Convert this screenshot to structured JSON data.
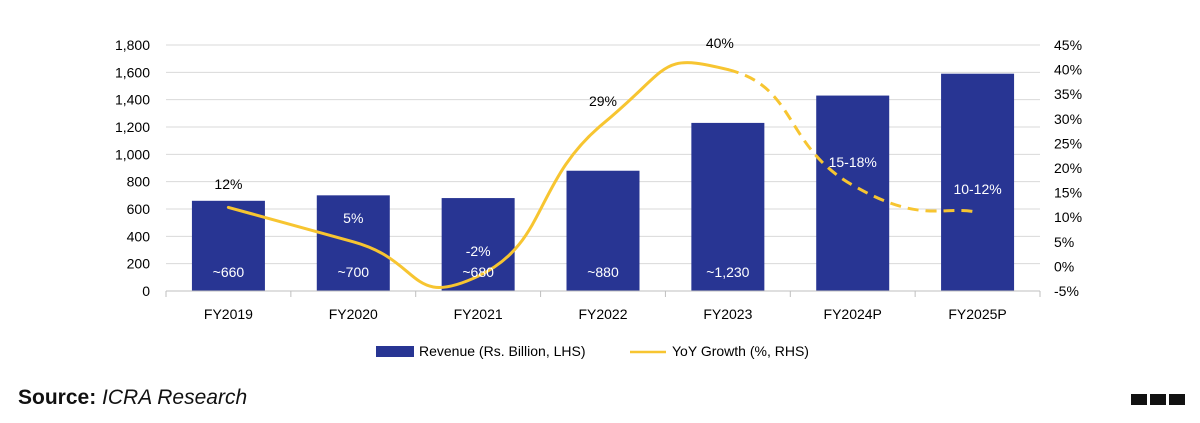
{
  "chart_data": {
    "type": "bar",
    "categories": [
      "FY2019",
      "FY2020",
      "FY2021",
      "FY2022",
      "FY2023",
      "FY2024P",
      "FY2025P"
    ],
    "series": [
      {
        "name": "Revenue (Rs. Billion, LHS)",
        "type": "bar",
        "axis": "left",
        "values": [
          660,
          700,
          680,
          880,
          1230,
          1430,
          1590
        ],
        "labels": [
          "~660",
          "~700",
          "~680",
          "~880",
          "~1,230",
          "",
          ""
        ]
      },
      {
        "name": "YoY Growth (%, RHS)",
        "type": "line",
        "axis": "right",
        "values": [
          12,
          5,
          -2,
          29,
          40,
          16.5,
          11
        ],
        "labels": [
          "12%",
          "5%",
          "-2%",
          "29%",
          "40%",
          "15-18%",
          "10-12%"
        ],
        "projected_from_index": 4
      }
    ],
    "y_left": {
      "min": 0,
      "max": 1800,
      "ticks": [
        "0",
        "200",
        "400",
        "600",
        "800",
        "1,000",
        "1,200",
        "1,400",
        "1,600",
        "1,800"
      ]
    },
    "y_right": {
      "min": -5,
      "max": 45,
      "ticks": [
        "-5%",
        "0%",
        "5%",
        "10%",
        "15%",
        "20%",
        "25%",
        "30%",
        "35%",
        "40%",
        "45%"
      ]
    },
    "grid": true,
    "legend_position": "bottom",
    "colors": {
      "bar": "#283593",
      "line": "#F7C531",
      "grid": "#D9D9D9",
      "axis": "#BFBFBF"
    }
  },
  "source": {
    "label": "Source:",
    "value": "ICRA Research"
  },
  "icons": {
    "corner_mark": "three-squares-icon"
  }
}
